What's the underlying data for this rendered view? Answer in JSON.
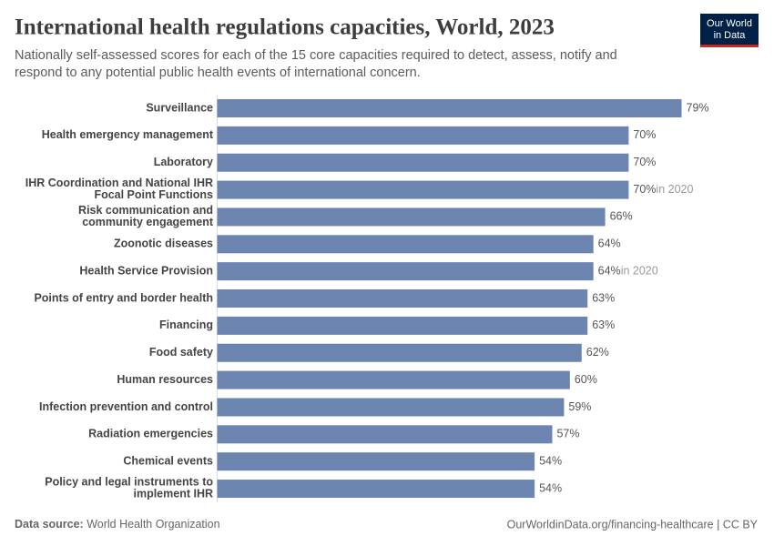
{
  "chart_data": {
    "type": "bar",
    "orientation": "horizontal",
    "title": "International health regulations capacities, World, 2023",
    "subtitle": [
      "Nationally self-assessed scores for each of the 15 core capacities required to detect, assess, notify and",
      "respond to any potential public health events of international concern."
    ],
    "logo": [
      "Our World",
      "in Data"
    ],
    "categories": [
      "Surveillance",
      "Health emergency management",
      "Laboratory",
      "IHR Coordination and National IHR\nFocal Point Functions",
      "Risk communication and\ncommunity engagement",
      "Zoonotic diseases",
      "Health Service Provision",
      "Points of entry and border health",
      "Financing",
      "Food safety",
      "Human resources",
      "Infection prevention and control",
      "Radiation emergencies",
      "Chemical events",
      "Policy and legal instruments to\nimplement IHR"
    ],
    "values": [
      79,
      70,
      70,
      70,
      66,
      64,
      64,
      63,
      63,
      62,
      60,
      59,
      57,
      54,
      54
    ],
    "value_labels": [
      "79%",
      "70%",
      "70%",
      "70%",
      "66%",
      "64%",
      "64%",
      "63%",
      "63%",
      "62%",
      "60%",
      "59%",
      "57%",
      "54%",
      "54%"
    ],
    "annotations": [
      {
        "category": "IHR Coordination and National IHR\nFocal Point Functions",
        "text": "in 2020"
      },
      {
        "category": "Health Service Provision",
        "text": "in 2020"
      }
    ],
    "color": "#6c85b0",
    "source_label": "Data source:",
    "source": "World Health Organization",
    "footer_right": "OurWorldinData.org/financing-healthcare | CC BY"
  }
}
